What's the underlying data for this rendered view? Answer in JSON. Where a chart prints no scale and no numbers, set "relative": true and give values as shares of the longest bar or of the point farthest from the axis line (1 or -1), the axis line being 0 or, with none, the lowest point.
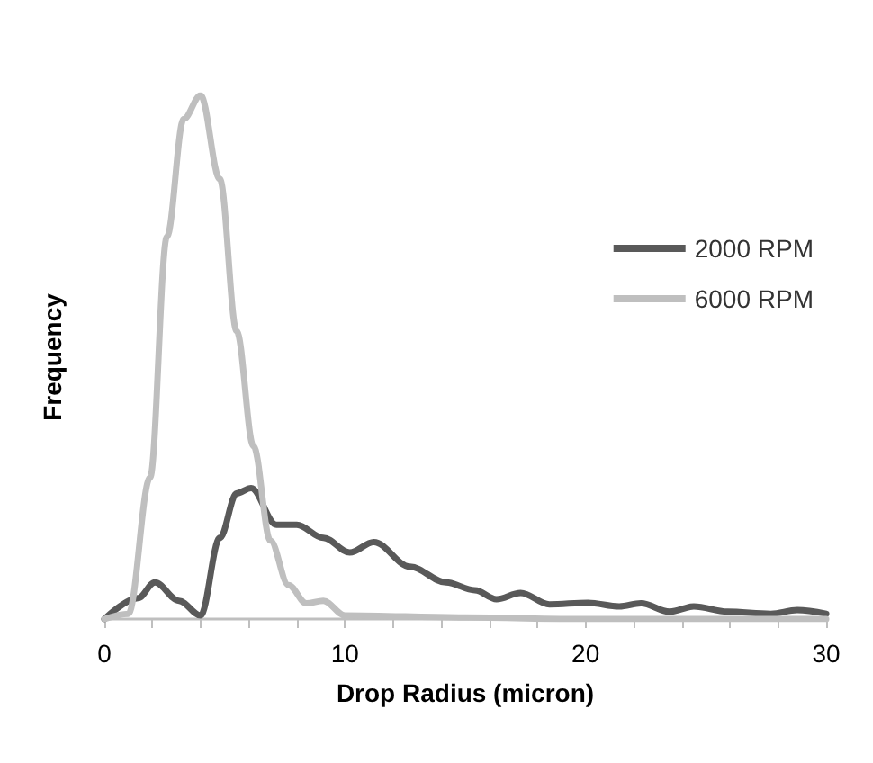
{
  "chart_data": {
    "type": "line",
    "relative": true,
    "xlabel": "Drop Radius (micron)",
    "ylabel": "Frequency",
    "xlim": [
      0,
      30
    ],
    "xticks": [
      0,
      {
        "value": 2,
        "label": null
      },
      {
        "value": 4,
        "label": null
      },
      {
        "value": 6,
        "label": null
      },
      {
        "value": 8,
        "label": null
      },
      10,
      {
        "value": 12,
        "label": null
      },
      {
        "value": 14,
        "label": null
      },
      {
        "value": 16,
        "label": null
      },
      {
        "value": 18,
        "label": null
      },
      20,
      {
        "value": 22,
        "label": null
      },
      {
        "value": 24,
        "label": null
      },
      {
        "value": 26,
        "label": null
      },
      {
        "value": 28,
        "label": null
      },
      30
    ],
    "legend": "top right",
    "grid": false,
    "marker": "none",
    "line_style": "solid",
    "series": [
      {
        "name": "2000 RPM",
        "color": "#595959",
        "x": [
          0,
          1.4,
          2.1,
          3.1,
          4,
          4.8,
          5.5,
          6.1,
          7.15,
          8,
          9.1,
          10.2,
          11.2,
          12.7,
          14.2,
          15.4,
          16.3,
          17.3,
          18.5,
          20.1,
          21.4,
          22.3,
          23.5,
          24.5,
          25.9,
          27.7,
          28.8,
          30
        ],
        "values": [
          0,
          0.04,
          0.07,
          0.035,
          0.007,
          0.155,
          0.24,
          0.25,
          0.18,
          0.18,
          0.155,
          0.127,
          0.147,
          0.1,
          0.07,
          0.055,
          0.038,
          0.05,
          0.028,
          0.031,
          0.024,
          0.03,
          0.014,
          0.024,
          0.014,
          0.01,
          0.017,
          0.01
        ]
      },
      {
        "name": "6000 RPM",
        "color": "#bfbfbf",
        "x": [
          0,
          1,
          1.9,
          2.6,
          3.3,
          4,
          4.8,
          5.5,
          6.2,
          6.9,
          7.65,
          8.4,
          9.1,
          10,
          15,
          20,
          25,
          30
        ],
        "values": [
          0,
          0.01,
          0.27,
          0.73,
          0.955,
          1,
          0.84,
          0.55,
          0.33,
          0.15,
          0.065,
          0.03,
          0.035,
          0.007,
          0.003,
          0,
          0,
          0
        ]
      }
    ]
  }
}
